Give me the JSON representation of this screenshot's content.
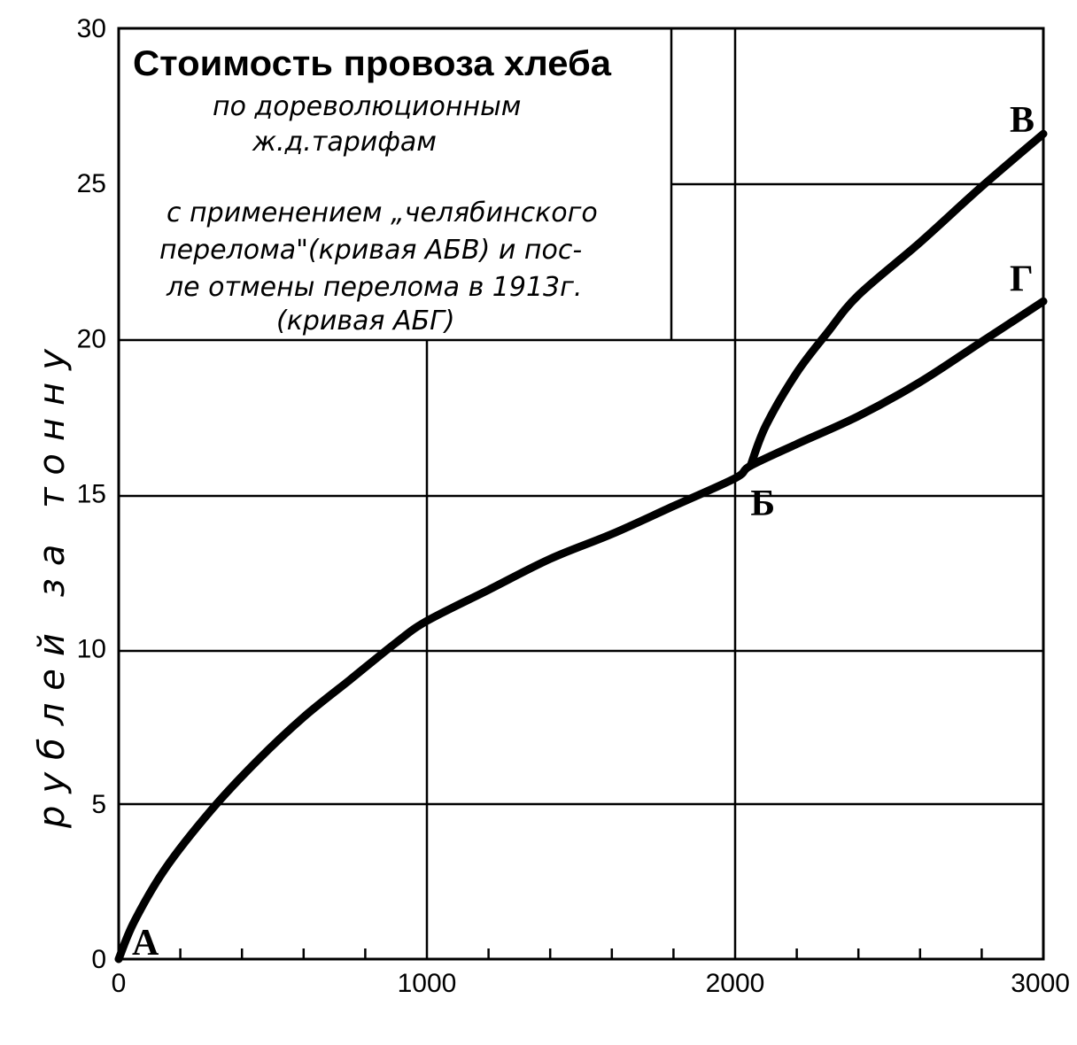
{
  "chart_data": {
    "type": "line",
    "title": "Стоимость провоза хлеба",
    "subtitle_lines": [
      "по дореволюционным",
      "ж.д.тарифам"
    ],
    "note_lines": [
      "с применением „челябинского",
      "перелома\"(кривая АБВ) и пос-",
      "ле отмены перелома в 1913г.",
      "(кривая АБГ)"
    ],
    "xlabel": "",
    "ylabel": "рублей за тонну",
    "xlim": [
      0,
      3000
    ],
    "ylim": [
      0,
      30
    ],
    "x_ticks": [
      0,
      1000,
      2000,
      3000
    ],
    "y_ticks": [
      0,
      5,
      10,
      15,
      20,
      25,
      30
    ],
    "grid": true,
    "point_labels": [
      {
        "label": "А",
        "x": 0,
        "y": 0
      },
      {
        "label": "Б",
        "x": 2050,
        "y": 15.9
      },
      {
        "label": "В",
        "x": 3000,
        "y": 26.6
      },
      {
        "label": "Г",
        "x": 3000,
        "y": 21.2
      }
    ],
    "series": [
      {
        "points": [
          [
            0,
            0
          ],
          [
            50,
            1.2
          ],
          [
            150,
            2.9
          ],
          [
            300,
            4.8
          ],
          [
            450,
            6.4
          ],
          [
            600,
            7.8
          ],
          [
            750,
            9.0
          ],
          [
            900,
            10.2
          ],
          [
            1000,
            10.9
          ],
          [
            1200,
            11.9
          ],
          [
            1400,
            12.9
          ],
          [
            1600,
            13.7
          ],
          [
            1800,
            14.6
          ],
          [
            2000,
            15.5
          ],
          [
            2050,
            15.9
          ],
          [
            2200,
            16.6
          ],
          [
            2400,
            17.5
          ],
          [
            2600,
            18.6
          ],
          [
            2800,
            19.9
          ],
          [
            3000,
            21.2
          ]
        ]
      },
      {
        "points": [
          [
            2050,
            15.9
          ],
          [
            2100,
            17.2
          ],
          [
            2200,
            18.9
          ],
          [
            2300,
            20.2
          ],
          [
            2400,
            21.4
          ],
          [
            2600,
            23.1
          ],
          [
            2800,
            24.9
          ],
          [
            3000,
            26.6
          ]
        ]
      }
    ]
  }
}
